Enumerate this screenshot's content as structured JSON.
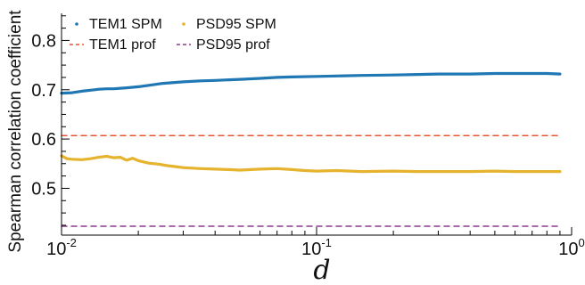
{
  "chart_data": {
    "type": "line",
    "xscale": "log",
    "xlim": [
      0.01,
      1
    ],
    "ylim": [
      0.405,
      0.855
    ],
    "ylabel": "Spearman correlation coefficient",
    "xlabel": "d",
    "grid": false,
    "legend_placement": "top-left",
    "x_ticks": [
      {
        "value": 0.01,
        "base": "10",
        "exp": "-2"
      },
      {
        "value": 0.1,
        "base": "10",
        "exp": "-1"
      },
      {
        "value": 1,
        "base": "10",
        "exp": "0"
      }
    ],
    "y_ticks": [
      {
        "value": 0.5,
        "label": "0.5"
      },
      {
        "value": 0.6,
        "label": "0.6"
      },
      {
        "value": 0.7,
        "label": "0.7"
      },
      {
        "value": 0.8,
        "label": "0.8"
      }
    ],
    "series": [
      {
        "name": "TEM1 SPM",
        "color": "#1f77b4",
        "style": "solid",
        "x": [
          0.01,
          0.011,
          0.012,
          0.013,
          0.014,
          0.015,
          0.016,
          0.017,
          0.018,
          0.02,
          0.022,
          0.025,
          0.03,
          0.035,
          0.04,
          0.05,
          0.06,
          0.07,
          0.08,
          0.1,
          0.12,
          0.15,
          0.2,
          0.25,
          0.3,
          0.4,
          0.5,
          0.6,
          0.7,
          0.8,
          0.9
        ],
        "y": [
          0.693,
          0.694,
          0.697,
          0.699,
          0.701,
          0.702,
          0.702,
          0.703,
          0.704,
          0.706,
          0.709,
          0.713,
          0.716,
          0.718,
          0.719,
          0.721,
          0.723,
          0.725,
          0.726,
          0.727,
          0.728,
          0.729,
          0.73,
          0.731,
          0.732,
          0.732,
          0.733,
          0.733,
          0.733,
          0.733,
          0.732
        ]
      },
      {
        "name": "PSD95 SPM",
        "color": "#e6b32e",
        "style": "solid",
        "x": [
          0.01,
          0.0105,
          0.011,
          0.012,
          0.013,
          0.014,
          0.015,
          0.016,
          0.017,
          0.018,
          0.019,
          0.02,
          0.022,
          0.024,
          0.026,
          0.028,
          0.03,
          0.035,
          0.04,
          0.045,
          0.05,
          0.06,
          0.07,
          0.08,
          0.09,
          0.1,
          0.12,
          0.15,
          0.2,
          0.25,
          0.3,
          0.4,
          0.5,
          0.6,
          0.7,
          0.8,
          0.9
        ],
        "y": [
          0.566,
          0.56,
          0.559,
          0.558,
          0.56,
          0.563,
          0.565,
          0.562,
          0.563,
          0.557,
          0.561,
          0.556,
          0.551,
          0.549,
          0.546,
          0.544,
          0.542,
          0.54,
          0.539,
          0.538,
          0.537,
          0.539,
          0.54,
          0.538,
          0.536,
          0.535,
          0.536,
          0.534,
          0.535,
          0.534,
          0.534,
          0.534,
          0.535,
          0.534,
          0.534,
          0.534,
          0.534
        ]
      },
      {
        "name": "TEM1 prof",
        "color": "#e8542e",
        "style": "dashed",
        "x": [
          0.01,
          0.9
        ],
        "y": [
          0.607,
          0.607
        ]
      },
      {
        "name": "PSD95 prof",
        "color": "#8e3a8e",
        "style": "dashed",
        "x": [
          0.01,
          0.9
        ],
        "y": [
          0.423,
          0.423
        ]
      }
    ],
    "legend_order": [
      "TEM1 SPM",
      "PSD95 SPM",
      "TEM1 prof",
      "PSD95 prof"
    ]
  }
}
